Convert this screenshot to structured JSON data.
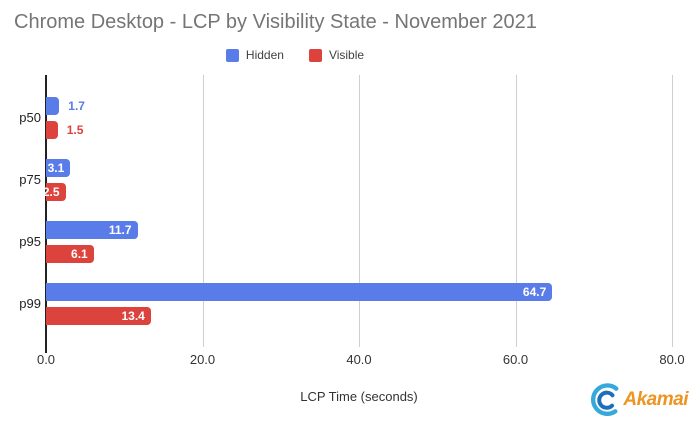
{
  "title": "Chrome Desktop - LCP by Visibility State - November 2021",
  "chart_data": {
    "type": "bar",
    "orientation": "horizontal",
    "categories": [
      "p50",
      "p75",
      "p95",
      "p99"
    ],
    "series": [
      {
        "name": "Hidden",
        "color": "#5A7CE8",
        "values": [
          1.7,
          3.1,
          11.7,
          64.7
        ]
      },
      {
        "name": "Visible",
        "color": "#DB433C",
        "values": [
          1.5,
          2.5,
          6.1,
          13.4
        ]
      }
    ],
    "title": "Chrome Desktop - LCP by Visibility State - November 2021",
    "xlabel": "LCP Time (seconds)",
    "ylabel": "",
    "xlim": [
      0,
      80
    ],
    "xticks": [
      "0.0",
      "20.0",
      "40.0",
      "60.0",
      "80.0"
    ],
    "grid": "vertical",
    "legend_position": "top",
    "value_labels": "shown, inside bar in white when bar is wide enough, otherwise outside in series color"
  },
  "colors": {
    "title_text": "#757575",
    "axis_text": "#333333",
    "gridline": "#cfcfcf",
    "axis_line": "#222222"
  },
  "branding": {
    "logo_text": "Akamai",
    "logo_text_color": "#EE9422",
    "logo_icon": "akamai-swoosh-icon"
  }
}
